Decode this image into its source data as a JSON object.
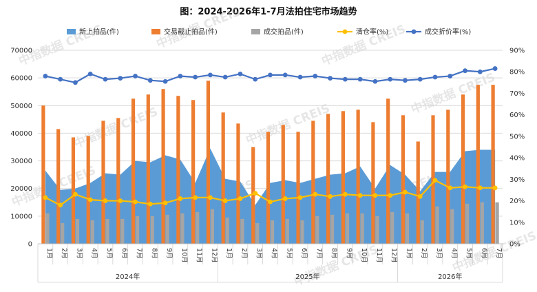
{
  "chart_data": {
    "title": "图：2024-2026年1-7月法拍住宅市场趋势",
    "type": "bar+area+line",
    "watermark": "中指数据 CREIS",
    "months": [
      "1月",
      "2月",
      "3月",
      "4月",
      "5月",
      "6月",
      "7月",
      "8月",
      "9月",
      "10月",
      "11月",
      "12月",
      "1月",
      "2月",
      "3月",
      "4月",
      "5月",
      "6月",
      "7月",
      "8月",
      "9月",
      "10月",
      "11月",
      "12月",
      "1月",
      "2月",
      "3月",
      "4月",
      "5月",
      "6月",
      "7月"
    ],
    "year_groups": [
      {
        "label": "2024年",
        "start": 0,
        "end": 11
      },
      {
        "label": "2025年",
        "start": 12,
        "end": 23
      },
      {
        "label": "2026年",
        "start": 24,
        "end": 30
      }
    ],
    "y_left": {
      "min": 0,
      "max": 70000,
      "step": 10000,
      "ticks": [
        "0",
        "10000",
        "20000",
        "30000",
        "40000",
        "50000",
        "60000",
        "70000"
      ]
    },
    "y_right": {
      "min": 0,
      "max": 90,
      "step": 10,
      "ticks": [
        "0%",
        "10%",
        "20%",
        "30%",
        "40%",
        "50%",
        "60%",
        "70%",
        "80%",
        "90%"
      ]
    },
    "legend": [
      {
        "key": "new",
        "label": "新上拍品(件)",
        "kind": "area",
        "color": "#5b9bd5"
      },
      {
        "key": "deadline",
        "label": "交易截止拍品(件)",
        "kind": "bar",
        "color": "#ed7d31"
      },
      {
        "key": "deal",
        "label": "成交拍品(件)",
        "kind": "bar",
        "color": "#a5a5a5"
      },
      {
        "key": "clear",
        "label": "清仓率(%)",
        "kind": "line",
        "color": "#ffc000"
      },
      {
        "key": "discount",
        "label": "成交折价率(%)",
        "kind": "line",
        "color": "#4472c4"
      }
    ],
    "series": {
      "new": [
        26500,
        19500,
        20000,
        22000,
        25500,
        25000,
        30000,
        29500,
        32000,
        30500,
        22000,
        34500,
        23500,
        22500,
        14000,
        22000,
        23000,
        22000,
        23500,
        25000,
        25500,
        28000,
        20000,
        28500,
        25000,
        19000,
        26000,
        26000,
        33500,
        34000,
        34000
      ],
      "deadline": [
        50000,
        41500,
        38500,
        39000,
        44500,
        45500,
        52500,
        54000,
        56000,
        53500,
        52000,
        59000,
        47500,
        43500,
        35000,
        40500,
        43000,
        40500,
        44500,
        47000,
        48000,
        48500,
        44000,
        52500,
        46500,
        37000,
        46500,
        48500,
        54000,
        57500,
        57500
      ],
      "deal": [
        11000,
        7500,
        9000,
        8500,
        9000,
        9000,
        10000,
        10000,
        10500,
        11000,
        11500,
        12500,
        9500,
        9000,
        7500,
        8500,
        9000,
        8500,
        10000,
        10500,
        11000,
        11000,
        10000,
        11500,
        11000,
        8500,
        13500,
        12500,
        14500,
        15000,
        15000
      ],
      "clear": [
        21.5,
        18,
        23,
        20.5,
        20,
        20,
        19.5,
        18.5,
        19,
        21,
        21.5,
        21.5,
        20,
        21,
        23.5,
        19.5,
        21,
        21.5,
        23,
        22,
        23,
        22.5,
        22.5,
        22.5,
        24,
        22,
        29.5,
        26,
        26.5,
        26,
        26
      ],
      "discount": [
        78,
        76.5,
        75,
        79,
        76.5,
        77,
        78,
        76,
        75.5,
        78,
        77.5,
        78.5,
        77.5,
        79,
        76.5,
        78.5,
        78.5,
        77.5,
        78,
        77,
        76.5,
        76.5,
        75.5,
        76.5,
        76,
        76.5,
        77.5,
        78,
        80.5,
        80,
        81.5
      ]
    }
  }
}
